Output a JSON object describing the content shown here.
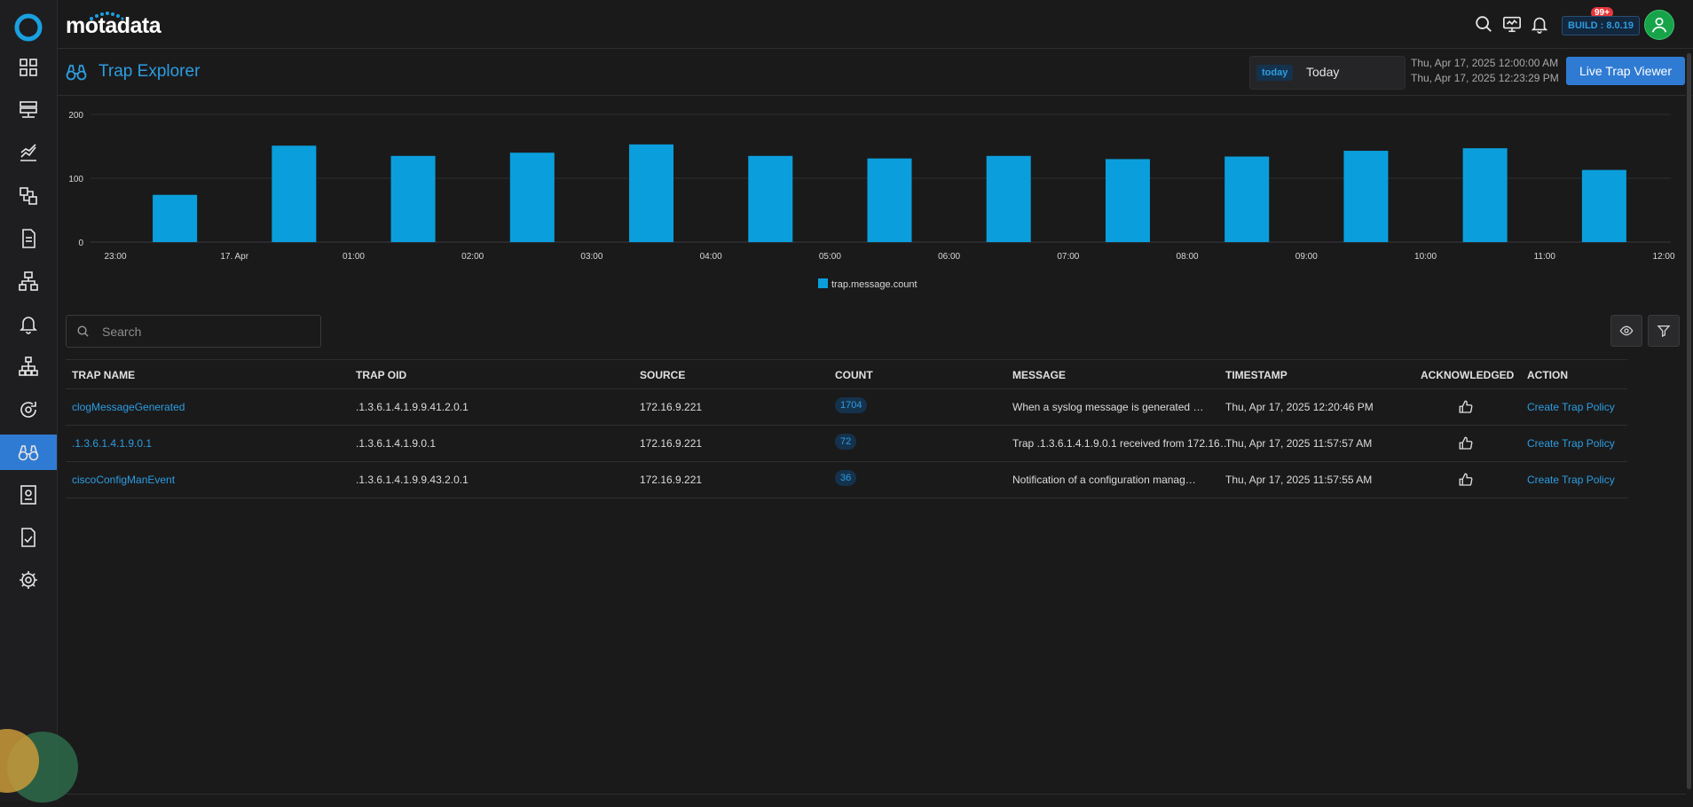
{
  "brand": {
    "name": "motadata"
  },
  "colors": {
    "accent": "#2d9de0",
    "bar": "#0a9fdc",
    "active_nav": "#2f7bd3",
    "badge_red": "#e5383b",
    "avatar_green": "#16a34a"
  },
  "sidebar": {
    "items": [
      {
        "icon": "dashboard-icon",
        "active": false
      },
      {
        "icon": "server-icon",
        "active": false
      },
      {
        "icon": "metrics-chart-icon",
        "active": false
      },
      {
        "icon": "topology-icon",
        "active": false
      },
      {
        "icon": "log-document-icon",
        "active": false
      },
      {
        "icon": "network-flow-icon",
        "active": false
      },
      {
        "icon": "bell-icon",
        "active": false
      },
      {
        "icon": "hierarchy-icon",
        "active": false
      },
      {
        "icon": "sync-settings-icon",
        "active": false
      },
      {
        "icon": "binoculars-icon",
        "active": true
      },
      {
        "icon": "report-icon",
        "active": false
      },
      {
        "icon": "checklist-icon",
        "active": false
      },
      {
        "icon": "gear-icon",
        "active": false
      }
    ]
  },
  "header": {
    "notifications_badge": "99+",
    "build": "BUILD : 8.0.19"
  },
  "page": {
    "title": "Trap Explorer",
    "time_chip": "today",
    "time_label": "Today",
    "date_start": "Thu, Apr 17, 2025 12:00:00 AM",
    "date_end": "Thu, Apr 17, 2025 12:23:29 PM",
    "live_button": "Live Trap Viewer"
  },
  "chart_data": {
    "type": "bar",
    "x_tick_labels": [
      "23:00",
      "17. Apr",
      "01:00",
      "02:00",
      "03:00",
      "04:00",
      "05:00",
      "06:00",
      "07:00",
      "08:00",
      "09:00",
      "10:00",
      "11:00",
      "12:00"
    ],
    "categories": [
      "23:30",
      "00:30",
      "01:30",
      "02:30",
      "03:30",
      "04:30",
      "05:30",
      "06:30",
      "07:30",
      "08:30",
      "09:30",
      "10:30",
      "11:30"
    ],
    "series": [
      {
        "name": "trap.message.count",
        "values": [
          74,
          151,
          135,
          140,
          153,
          135,
          131,
          135,
          130,
          134,
          143,
          147,
          113
        ]
      }
    ],
    "y_ticks": [
      0,
      100,
      200
    ],
    "ylim": [
      0,
      200
    ],
    "grid": true,
    "legend": "bottom-center"
  },
  "search": {
    "placeholder": "Search"
  },
  "table": {
    "columns": [
      "TRAP NAME",
      "TRAP OID",
      "SOURCE",
      "COUNT",
      "MESSAGE",
      "TIMESTAMP",
      "ACKNOWLEDGED",
      "ACTION"
    ],
    "rows": [
      {
        "name": "clogMessageGenerated",
        "oid": ".1.3.6.1.4.1.9.9.41.2.0.1",
        "source": "172.16.9.221",
        "count": "1704",
        "message": "When a syslog message is generated …",
        "timestamp": "Thu, Apr 17, 2025 12:20:46 PM",
        "action": "Create Trap Policy"
      },
      {
        "name": ".1.3.6.1.4.1.9.0.1",
        "oid": ".1.3.6.1.4.1.9.0.1",
        "source": "172.16.9.221",
        "count": "72",
        "message": "Trap .1.3.6.1.4.1.9.0.1 received from 172.16…",
        "timestamp": "Thu, Apr 17, 2025 11:57:57 AM",
        "action": "Create Trap Policy"
      },
      {
        "name": "ciscoConfigManEvent",
        "oid": ".1.3.6.1.4.1.9.9.43.2.0.1",
        "source": "172.16.9.221",
        "count": "36",
        "message": "Notification of a configuration manag…",
        "timestamp": "Thu, Apr 17, 2025 11:57:55 AM",
        "action": "Create Trap Policy"
      }
    ]
  }
}
